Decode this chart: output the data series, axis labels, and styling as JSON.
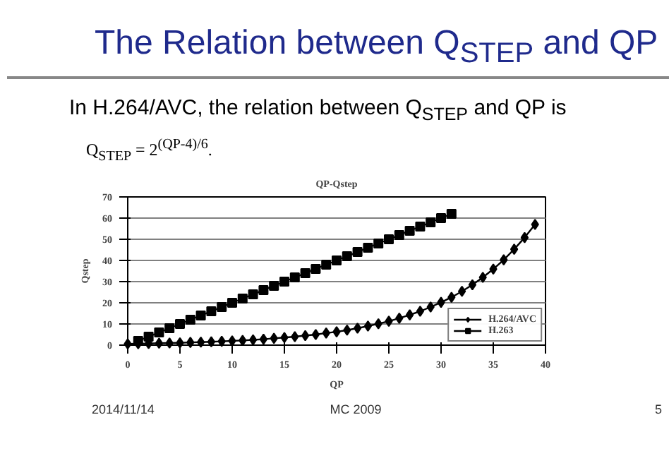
{
  "chart_data": {
    "type": "line",
    "title": "The Relation between Q$_{STEP}$ and QP",
    "subtitle": "QP-Qstep",
    "xlabel": "QP",
    "ylabel": "Qstep",
    "annotations": [
      "In H.264/AVC, the relation between Q$_{STEP}$ and QP is",
      "Q$_{STEP}$ = 2$^{(QP-4)/6}$.",
      "2014/11/14",
      "MC 2009",
      "5"
    ],
    "xlim": [
      0,
      40
    ],
    "xticks": [
      0,
      5,
      10,
      15,
      20,
      25,
      30,
      35,
      40
    ],
    "ylim": [
      0,
      70
    ],
    "yticks": [
      0,
      10,
      20,
      30,
      40,
      50,
      60,
      70
    ],
    "grid": "y",
    "legend": "bottom right",
    "series": [
      {
        "name": "H.264/AVC",
        "color": "#000000",
        "marker": "diamond",
        "x": [
          0,
          1,
          2,
          3,
          4,
          5,
          6,
          7,
          8,
          9,
          10,
          11,
          12,
          13,
          14,
          15,
          16,
          17,
          18,
          19,
          20,
          21,
          22,
          23,
          24,
          25,
          26,
          27,
          28,
          29,
          30,
          31,
          32,
          33,
          34,
          35,
          36,
          37,
          38,
          39
        ],
        "values": [
          0.6,
          0.7,
          0.8,
          0.9,
          1.0,
          1.1,
          1.3,
          1.4,
          1.6,
          1.8,
          2.0,
          2.2,
          2.5,
          2.8,
          3.2,
          3.6,
          4.0,
          4.5,
          5.0,
          5.7,
          6.3,
          7.1,
          8.0,
          9.0,
          10.1,
          11.3,
          12.7,
          14.3,
          16.0,
          18.0,
          20.2,
          22.6,
          25.4,
          28.5,
          32.0,
          35.9,
          40.3,
          45.3,
          50.8,
          57.0
        ]
      },
      {
        "name": "H.263",
        "color": "#000000",
        "marker": "square",
        "x": [
          1,
          2,
          3,
          4,
          5,
          6,
          7,
          8,
          9,
          10,
          11,
          12,
          13,
          14,
          15,
          16,
          17,
          18,
          19,
          20,
          21,
          22,
          23,
          24,
          25,
          26,
          27,
          28,
          29,
          30,
          31
        ],
        "values": [
          2,
          4,
          6,
          8,
          10,
          12,
          14,
          16,
          18,
          20,
          22,
          24,
          26,
          28,
          30,
          32,
          34,
          36,
          38,
          40,
          42,
          44,
          46,
          48,
          50,
          52,
          54,
          56,
          58,
          60,
          62
        ]
      }
    ]
  }
}
